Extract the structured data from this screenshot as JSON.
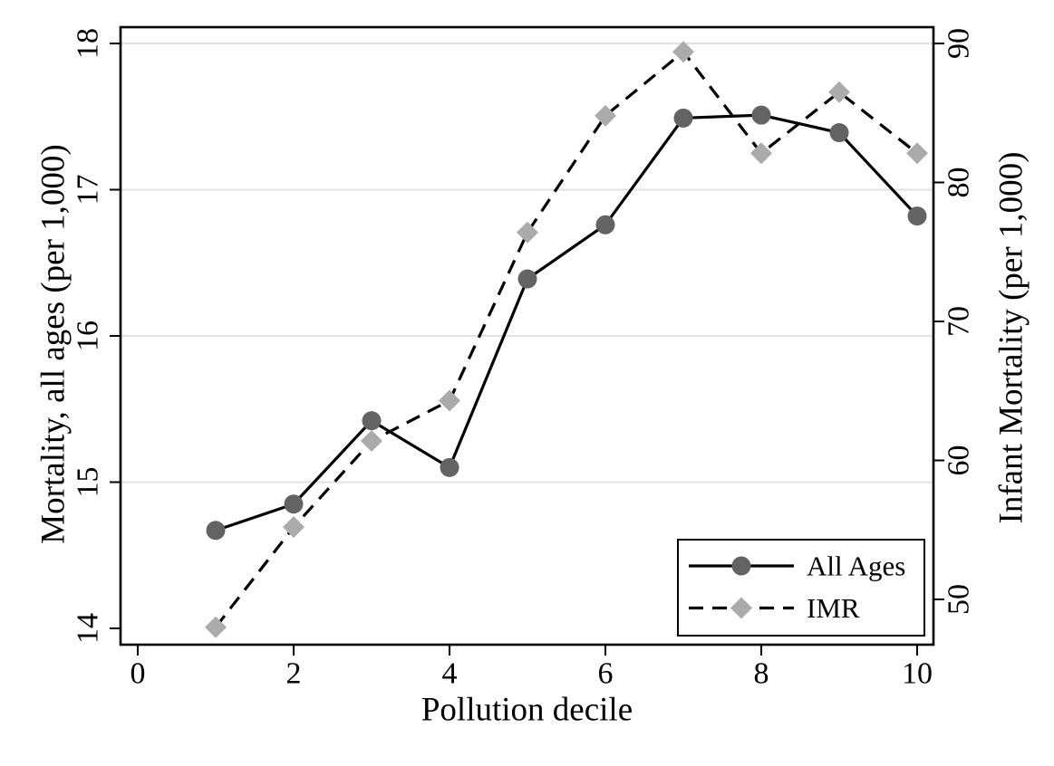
{
  "chart_data": {
    "type": "line",
    "title": "",
    "xlabel": "Pollution decile",
    "ylabel_left": "Mortality, all ages (per 1,000)",
    "ylabel_right": "Infant Mortality (per 1,000)",
    "x": [
      1,
      2,
      3,
      4,
      5,
      6,
      7,
      8,
      9,
      10
    ],
    "x_axis": {
      "ticks": [
        0,
        2,
        4,
        6,
        8,
        10
      ],
      "range": [
        0,
        10
      ]
    },
    "left_axis": {
      "ticks": [
        14,
        15,
        16,
        17,
        18
      ],
      "range": [
        14,
        18
      ]
    },
    "right_axis": {
      "ticks": [
        50,
        60,
        70,
        80,
        90
      ],
      "range": [
        50,
        90
      ]
    },
    "gridlines_left_values": [
      15,
      16,
      17,
      18
    ],
    "grid": "on",
    "series": [
      {
        "name": "All Ages",
        "axis": "left",
        "line_style": "solid",
        "marker": "circle",
        "line_color": "#000000",
        "marker_color": "#636363",
        "values": [
          14.67,
          14.85,
          15.42,
          15.1,
          16.39,
          16.76,
          17.49,
          17.51,
          17.39,
          16.82
        ]
      },
      {
        "name": "IMR",
        "axis": "right",
        "line_style": "dashed",
        "marker": "diamond",
        "line_color": "#000000",
        "marker_color": "#ababab",
        "values": [
          48.0,
          55.2,
          61.4,
          64.3,
          76.4,
          84.8,
          89.4,
          82.1,
          86.5,
          82.1
        ]
      }
    ],
    "legend": {
      "position": "inside-bottom-right",
      "entries": [
        "All Ages",
        "IMR"
      ]
    },
    "colors": {
      "background": "#ffffff",
      "axis": "#000000",
      "gridline": "#e2e2e2",
      "circle_marker": "#636363",
      "diamond_marker": "#ababab"
    }
  }
}
